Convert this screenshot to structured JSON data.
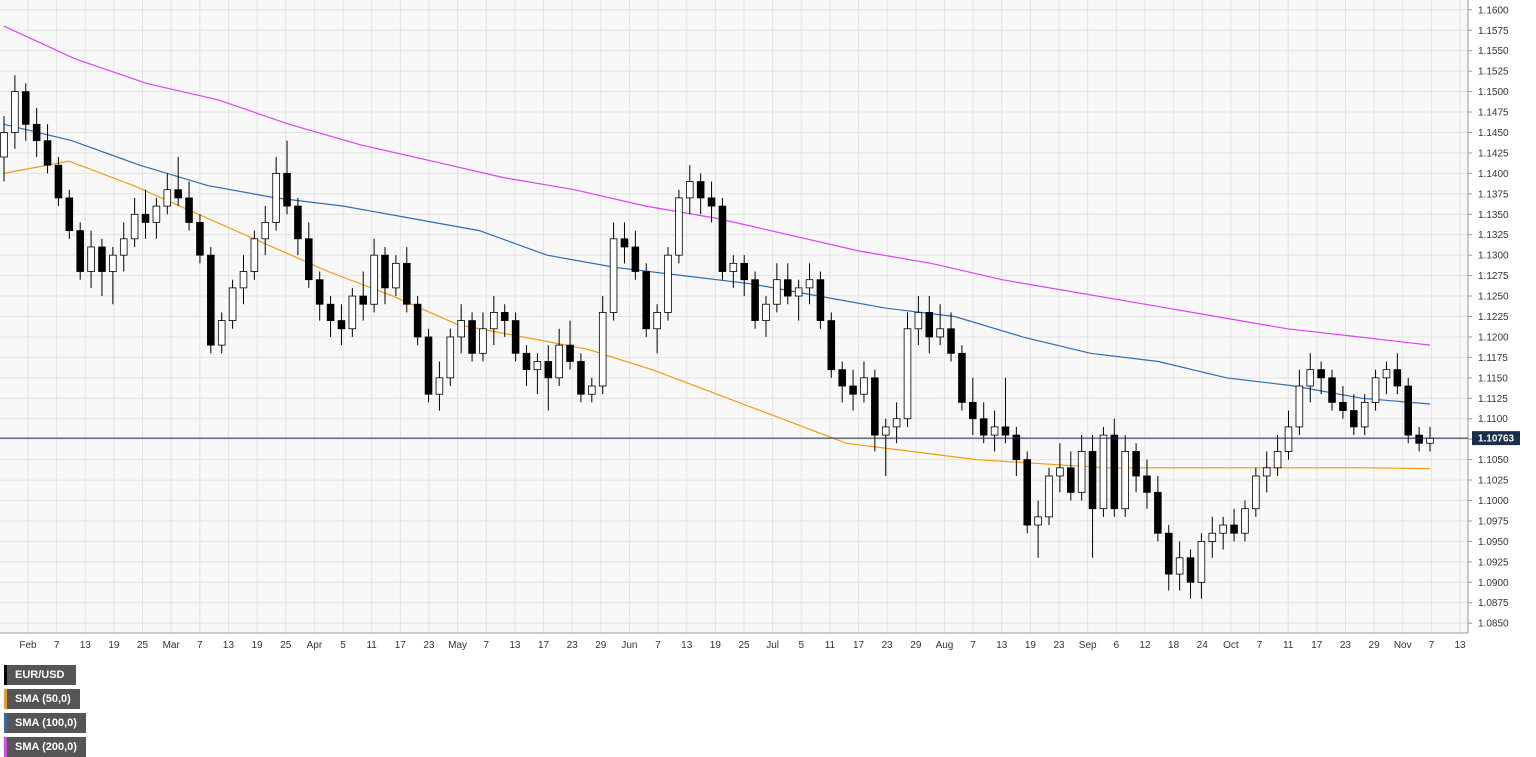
{
  "chart_data": {
    "type": "candlestick",
    "instrument": "EUR/USD",
    "timeframe": "daily",
    "legend": [
      {
        "label": "EUR/USD",
        "color": "#000000"
      },
      {
        "label": "SMA (50,0)",
        "color": "#f39c12"
      },
      {
        "label": "SMA (100,0)",
        "color": "#2e6db4"
      },
      {
        "label": "SMA (200,0)",
        "color": "#e040fb"
      }
    ],
    "y_ticks": [
      "1.1600",
      "1.1575",
      "1.1550",
      "1.1525",
      "1.1500",
      "1.1475",
      "1.1450",
      "1.1425",
      "1.1400",
      "1.1375",
      "1.1350",
      "1.1325",
      "1.1300",
      "1.1275",
      "1.1250",
      "1.1225",
      "1.1200",
      "1.1175",
      "1.1150",
      "1.1125",
      "1.1100",
      "1.1075",
      "1.1050",
      "1.1025",
      "1.1000",
      "1.0975",
      "1.0950",
      "1.0925",
      "1.0900",
      "1.0875",
      "1.0850"
    ],
    "ylim": [
      1.0838,
      1.1612
    ],
    "x_ticks": [
      "Feb",
      "7",
      "13",
      "19",
      "25",
      "Mar",
      "7",
      "13",
      "19",
      "25",
      "Apr",
      "5",
      "11",
      "17",
      "23",
      "May",
      "7",
      "13",
      "17",
      "23",
      "29",
      "Jun",
      "7",
      "13",
      "19",
      "25",
      "Jul",
      "5",
      "11",
      "17",
      "23",
      "29",
      "Aug",
      "7",
      "13",
      "19",
      "23",
      "Sep",
      "6",
      "12",
      "18",
      "24",
      "Oct",
      "7",
      "11",
      "17",
      "23",
      "29",
      "Nov",
      "7",
      "13"
    ],
    "last_price": "1.10763",
    "colors": {
      "bull": "#ffffff",
      "bear": "#000000",
      "grid": "#e3e3e3",
      "price_line": "#1a2f4b",
      "price_tag": "#1a2f4b",
      "sma50": "#f39c12",
      "sma100": "#2e6db4",
      "sma200": "#e040fb"
    },
    "candles": [
      {
        "o": 1.142,
        "h": 1.147,
        "l": 1.139,
        "c": 1.145
      },
      {
        "o": 1.145,
        "h": 1.152,
        "l": 1.143,
        "c": 1.15
      },
      {
        "o": 1.15,
        "h": 1.151,
        "l": 1.144,
        "c": 1.146
      },
      {
        "o": 1.146,
        "h": 1.148,
        "l": 1.142,
        "c": 1.144
      },
      {
        "o": 1.144,
        "h": 1.146,
        "l": 1.14,
        "c": 1.141
      },
      {
        "o": 1.141,
        "h": 1.142,
        "l": 1.136,
        "c": 1.137
      },
      {
        "o": 1.137,
        "h": 1.138,
        "l": 1.132,
        "c": 1.133
      },
      {
        "o": 1.133,
        "h": 1.134,
        "l": 1.127,
        "c": 1.128
      },
      {
        "o": 1.128,
        "h": 1.133,
        "l": 1.126,
        "c": 1.131
      },
      {
        "o": 1.131,
        "h": 1.132,
        "l": 1.125,
        "c": 1.128
      },
      {
        "o": 1.128,
        "h": 1.131,
        "l": 1.124,
        "c": 1.13
      },
      {
        "o": 1.13,
        "h": 1.134,
        "l": 1.128,
        "c": 1.132
      },
      {
        "o": 1.132,
        "h": 1.137,
        "l": 1.131,
        "c": 1.135
      },
      {
        "o": 1.135,
        "h": 1.138,
        "l": 1.132,
        "c": 1.134
      },
      {
        "o": 1.134,
        "h": 1.137,
        "l": 1.132,
        "c": 1.136
      },
      {
        "o": 1.136,
        "h": 1.14,
        "l": 1.135,
        "c": 1.138
      },
      {
        "o": 1.138,
        "h": 1.142,
        "l": 1.136,
        "c": 1.137
      },
      {
        "o": 1.137,
        "h": 1.139,
        "l": 1.133,
        "c": 1.134
      },
      {
        "o": 1.134,
        "h": 1.135,
        "l": 1.129,
        "c": 1.13
      },
      {
        "o": 1.13,
        "h": 1.131,
        "l": 1.118,
        "c": 1.119
      },
      {
        "o": 1.119,
        "h": 1.123,
        "l": 1.118,
        "c": 1.122
      },
      {
        "o": 1.122,
        "h": 1.127,
        "l": 1.121,
        "c": 1.126
      },
      {
        "o": 1.126,
        "h": 1.13,
        "l": 1.124,
        "c": 1.128
      },
      {
        "o": 1.128,
        "h": 1.133,
        "l": 1.127,
        "c": 1.132
      },
      {
        "o": 1.132,
        "h": 1.136,
        "l": 1.13,
        "c": 1.134
      },
      {
        "o": 1.134,
        "h": 1.142,
        "l": 1.133,
        "c": 1.14
      },
      {
        "o": 1.14,
        "h": 1.144,
        "l": 1.135,
        "c": 1.136
      },
      {
        "o": 1.136,
        "h": 1.137,
        "l": 1.13,
        "c": 1.132
      },
      {
        "o": 1.132,
        "h": 1.134,
        "l": 1.126,
        "c": 1.127
      },
      {
        "o": 1.127,
        "h": 1.128,
        "l": 1.122,
        "c": 1.124
      },
      {
        "o": 1.124,
        "h": 1.125,
        "l": 1.12,
        "c": 1.122
      },
      {
        "o": 1.122,
        "h": 1.124,
        "l": 1.119,
        "c": 1.121
      },
      {
        "o": 1.121,
        "h": 1.126,
        "l": 1.12,
        "c": 1.125
      },
      {
        "o": 1.125,
        "h": 1.128,
        "l": 1.122,
        "c": 1.124
      },
      {
        "o": 1.124,
        "h": 1.132,
        "l": 1.123,
        "c": 1.13
      },
      {
        "o": 1.13,
        "h": 1.131,
        "l": 1.124,
        "c": 1.126
      },
      {
        "o": 1.126,
        "h": 1.13,
        "l": 1.125,
        "c": 1.129
      },
      {
        "o": 1.129,
        "h": 1.131,
        "l": 1.123,
        "c": 1.124
      },
      {
        "o": 1.124,
        "h": 1.125,
        "l": 1.119,
        "c": 1.12
      },
      {
        "o": 1.12,
        "h": 1.121,
        "l": 1.112,
        "c": 1.113
      },
      {
        "o": 1.113,
        "h": 1.117,
        "l": 1.111,
        "c": 1.115
      },
      {
        "o": 1.115,
        "h": 1.121,
        "l": 1.114,
        "c": 1.12
      },
      {
        "o": 1.12,
        "h": 1.124,
        "l": 1.118,
        "c": 1.122
      },
      {
        "o": 1.122,
        "h": 1.123,
        "l": 1.117,
        "c": 1.118
      },
      {
        "o": 1.118,
        "h": 1.123,
        "l": 1.117,
        "c": 1.121
      },
      {
        "o": 1.121,
        "h": 1.125,
        "l": 1.119,
        "c": 1.123
      },
      {
        "o": 1.123,
        "h": 1.124,
        "l": 1.12,
        "c": 1.122
      },
      {
        "o": 1.122,
        "h": 1.123,
        "l": 1.117,
        "c": 1.118
      },
      {
        "o": 1.118,
        "h": 1.119,
        "l": 1.114,
        "c": 1.116
      },
      {
        "o": 1.116,
        "h": 1.118,
        "l": 1.113,
        "c": 1.117
      },
      {
        "o": 1.117,
        "h": 1.119,
        "l": 1.111,
        "c": 1.115
      },
      {
        "o": 1.115,
        "h": 1.121,
        "l": 1.114,
        "c": 1.119
      },
      {
        "o": 1.119,
        "h": 1.122,
        "l": 1.116,
        "c": 1.117
      },
      {
        "o": 1.117,
        "h": 1.118,
        "l": 1.112,
        "c": 1.113
      },
      {
        "o": 1.113,
        "h": 1.115,
        "l": 1.112,
        "c": 1.114
      },
      {
        "o": 1.114,
        "h": 1.125,
        "l": 1.113,
        "c": 1.123
      },
      {
        "o": 1.123,
        "h": 1.134,
        "l": 1.122,
        "c": 1.132
      },
      {
        "o": 1.132,
        "h": 1.134,
        "l": 1.129,
        "c": 1.131
      },
      {
        "o": 1.131,
        "h": 1.133,
        "l": 1.127,
        "c": 1.128
      },
      {
        "o": 1.128,
        "h": 1.129,
        "l": 1.12,
        "c": 1.121
      },
      {
        "o": 1.121,
        "h": 1.124,
        "l": 1.118,
        "c": 1.123
      },
      {
        "o": 1.123,
        "h": 1.131,
        "l": 1.122,
        "c": 1.13
      },
      {
        "o": 1.13,
        "h": 1.138,
        "l": 1.129,
        "c": 1.137
      },
      {
        "o": 1.137,
        "h": 1.141,
        "l": 1.135,
        "c": 1.139
      },
      {
        "o": 1.139,
        "h": 1.14,
        "l": 1.135,
        "c": 1.137
      },
      {
        "o": 1.137,
        "h": 1.139,
        "l": 1.134,
        "c": 1.136
      },
      {
        "o": 1.136,
        "h": 1.137,
        "l": 1.127,
        "c": 1.128
      },
      {
        "o": 1.128,
        "h": 1.13,
        "l": 1.126,
        "c": 1.129
      },
      {
        "o": 1.129,
        "h": 1.13,
        "l": 1.125,
        "c": 1.127
      },
      {
        "o": 1.127,
        "h": 1.128,
        "l": 1.121,
        "c": 1.122
      },
      {
        "o": 1.122,
        "h": 1.125,
        "l": 1.12,
        "c": 1.124
      },
      {
        "o": 1.124,
        "h": 1.129,
        "l": 1.123,
        "c": 1.127
      },
      {
        "o": 1.127,
        "h": 1.129,
        "l": 1.124,
        "c": 1.125
      },
      {
        "o": 1.125,
        "h": 1.127,
        "l": 1.122,
        "c": 1.126
      },
      {
        "o": 1.126,
        "h": 1.129,
        "l": 1.124,
        "c": 1.127
      },
      {
        "o": 1.127,
        "h": 1.128,
        "l": 1.121,
        "c": 1.122
      },
      {
        "o": 1.122,
        "h": 1.123,
        "l": 1.115,
        "c": 1.116
      },
      {
        "o": 1.116,
        "h": 1.117,
        "l": 1.112,
        "c": 1.114
      },
      {
        "o": 1.114,
        "h": 1.116,
        "l": 1.111,
        "c": 1.113
      },
      {
        "o": 1.113,
        "h": 1.117,
        "l": 1.112,
        "c": 1.115
      },
      {
        "o": 1.115,
        "h": 1.116,
        "l": 1.106,
        "c": 1.108
      },
      {
        "o": 1.108,
        "h": 1.11,
        "l": 1.103,
        "c": 1.109
      },
      {
        "o": 1.109,
        "h": 1.112,
        "l": 1.107,
        "c": 1.11
      },
      {
        "o": 1.11,
        "h": 1.123,
        "l": 1.109,
        "c": 1.121
      },
      {
        "o": 1.121,
        "h": 1.125,
        "l": 1.119,
        "c": 1.123
      },
      {
        "o": 1.123,
        "h": 1.125,
        "l": 1.118,
        "c": 1.12
      },
      {
        "o": 1.12,
        "h": 1.124,
        "l": 1.119,
        "c": 1.121
      },
      {
        "o": 1.121,
        "h": 1.123,
        "l": 1.117,
        "c": 1.118
      },
      {
        "o": 1.118,
        "h": 1.119,
        "l": 1.111,
        "c": 1.112
      },
      {
        "o": 1.112,
        "h": 1.115,
        "l": 1.108,
        "c": 1.11
      },
      {
        "o": 1.11,
        "h": 1.112,
        "l": 1.107,
        "c": 1.108
      },
      {
        "o": 1.108,
        "h": 1.111,
        "l": 1.106,
        "c": 1.109
      },
      {
        "o": 1.109,
        "h": 1.115,
        "l": 1.107,
        "c": 1.108
      },
      {
        "o": 1.108,
        "h": 1.109,
        "l": 1.103,
        "c": 1.105
      },
      {
        "o": 1.105,
        "h": 1.106,
        "l": 1.096,
        "c": 1.097
      },
      {
        "o": 1.097,
        "h": 1.1,
        "l": 1.093,
        "c": 1.098
      },
      {
        "o": 1.098,
        "h": 1.104,
        "l": 1.097,
        "c": 1.103
      },
      {
        "o": 1.103,
        "h": 1.107,
        "l": 1.101,
        "c": 1.104
      },
      {
        "o": 1.104,
        "h": 1.106,
        "l": 1.1,
        "c": 1.101
      },
      {
        "o": 1.101,
        "h": 1.108,
        "l": 1.1,
        "c": 1.106
      },
      {
        "o": 1.106,
        "h": 1.108,
        "l": 1.093,
        "c": 1.099
      },
      {
        "o": 1.099,
        "h": 1.109,
        "l": 1.098,
        "c": 1.108
      },
      {
        "o": 1.108,
        "h": 1.11,
        "l": 1.098,
        "c": 1.099
      },
      {
        "o": 1.099,
        "h": 1.108,
        "l": 1.098,
        "c": 1.106
      },
      {
        "o": 1.106,
        "h": 1.107,
        "l": 1.101,
        "c": 1.103
      },
      {
        "o": 1.103,
        "h": 1.105,
        "l": 1.099,
        "c": 1.101
      },
      {
        "o": 1.101,
        "h": 1.103,
        "l": 1.095,
        "c": 1.096
      },
      {
        "o": 1.096,
        "h": 1.097,
        "l": 1.089,
        "c": 1.091
      },
      {
        "o": 1.091,
        "h": 1.095,
        "l": 1.089,
        "c": 1.093
      },
      {
        "o": 1.093,
        "h": 1.094,
        "l": 1.088,
        "c": 1.09
      },
      {
        "o": 1.09,
        "h": 1.096,
        "l": 1.088,
        "c": 1.095
      },
      {
        "o": 1.095,
        "h": 1.098,
        "l": 1.093,
        "c": 1.096
      },
      {
        "o": 1.096,
        "h": 1.098,
        "l": 1.094,
        "c": 1.097
      },
      {
        "o": 1.097,
        "h": 1.099,
        "l": 1.095,
        "c": 1.096
      },
      {
        "o": 1.096,
        "h": 1.1,
        "l": 1.095,
        "c": 1.099
      },
      {
        "o": 1.099,
        "h": 1.104,
        "l": 1.098,
        "c": 1.103
      },
      {
        "o": 1.103,
        "h": 1.106,
        "l": 1.101,
        "c": 1.104
      },
      {
        "o": 1.104,
        "h": 1.108,
        "l": 1.103,
        "c": 1.106
      },
      {
        "o": 1.106,
        "h": 1.111,
        "l": 1.105,
        "c": 1.109
      },
      {
        "o": 1.109,
        "h": 1.116,
        "l": 1.108,
        "c": 1.114
      },
      {
        "o": 1.114,
        "h": 1.118,
        "l": 1.112,
        "c": 1.116
      },
      {
        "o": 1.116,
        "h": 1.117,
        "l": 1.113,
        "c": 1.115
      },
      {
        "o": 1.115,
        "h": 1.116,
        "l": 1.111,
        "c": 1.112
      },
      {
        "o": 1.112,
        "h": 1.114,
        "l": 1.11,
        "c": 1.111
      },
      {
        "o": 1.111,
        "h": 1.113,
        "l": 1.108,
        "c": 1.109
      },
      {
        "o": 1.109,
        "h": 1.113,
        "l": 1.108,
        "c": 1.112
      },
      {
        "o": 1.112,
        "h": 1.116,
        "l": 1.111,
        "c": 1.115
      },
      {
        "o": 1.115,
        "h": 1.117,
        "l": 1.113,
        "c": 1.116
      },
      {
        "o": 1.116,
        "h": 1.118,
        "l": 1.113,
        "c": 1.114
      },
      {
        "o": 1.114,
        "h": 1.115,
        "l": 1.107,
        "c": 1.108
      },
      {
        "o": 1.108,
        "h": 1.109,
        "l": 1.106,
        "c": 1.107
      },
      {
        "o": 1.107,
        "h": 1.109,
        "l": 1.106,
        "c": 1.1076
      }
    ],
    "sma50": [
      1.14,
      1.1415,
      1.1385,
      1.135,
      1.1315,
      1.128,
      1.125,
      1.1215,
      1.12,
      1.1185,
      1.116,
      1.113,
      1.11,
      1.107,
      1.106,
      1.105,
      1.1045,
      1.104,
      1.104,
      1.104,
      1.104,
      1.104,
      1.1039
    ],
    "sma100": [
      1.146,
      1.144,
      1.141,
      1.1385,
      1.137,
      1.136,
      1.1345,
      1.133,
      1.13,
      1.1285,
      1.1275,
      1.1265,
      1.125,
      1.1235,
      1.1225,
      1.12,
      1.118,
      1.117,
      1.115,
      1.114,
      1.1125,
      1.1118
    ],
    "sma200": [
      1.158,
      1.154,
      1.151,
      1.149,
      1.146,
      1.1435,
      1.1415,
      1.1395,
      1.138,
      1.136,
      1.1345,
      1.1325,
      1.1305,
      1.129,
      1.127,
      1.1255,
      1.124,
      1.1225,
      1.121,
      1.12,
      1.119
    ]
  }
}
